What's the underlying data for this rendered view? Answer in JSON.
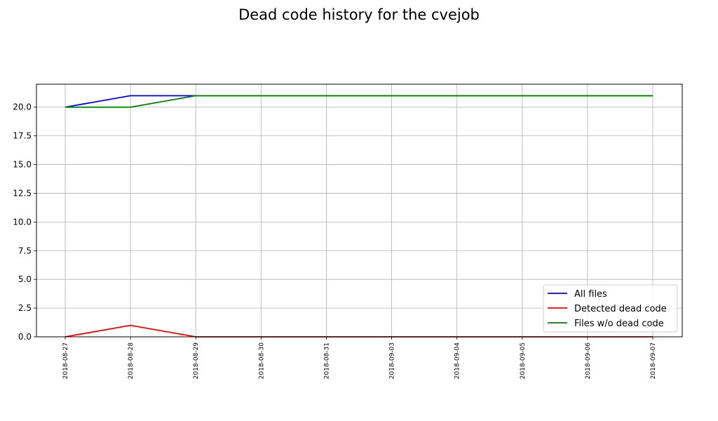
{
  "chart_data": {
    "type": "line",
    "title": "Dead code history for the cvejob",
    "xlabel": "",
    "ylabel": "",
    "x": [
      "2018-08-27",
      "2018-08-28",
      "2018-08-29",
      "2018-08-30",
      "2018-08-31",
      "2018-09-03",
      "2018-09-04",
      "2018-09-05",
      "2018-09-06",
      "2018-09-07"
    ],
    "y_ticks": [
      "0.0",
      "2.5",
      "5.0",
      "7.5",
      "10.0",
      "12.5",
      "15.0",
      "17.5",
      "20.0"
    ],
    "ylim": [
      0,
      22
    ],
    "grid": true,
    "legend_position": "bottom-right",
    "series": [
      {
        "name": "All files",
        "color": "#0000ff",
        "values": [
          20,
          21,
          21,
          21,
          21,
          21,
          21,
          21,
          21,
          21
        ]
      },
      {
        "name": "Detected dead code",
        "color": "#ff0000",
        "values": [
          0,
          1,
          0,
          0,
          0,
          0,
          0,
          0,
          0,
          0
        ]
      },
      {
        "name": "Files w/o dead code",
        "color": "#008000",
        "values": [
          20,
          20,
          21,
          21,
          21,
          21,
          21,
          21,
          21,
          21
        ]
      }
    ]
  }
}
